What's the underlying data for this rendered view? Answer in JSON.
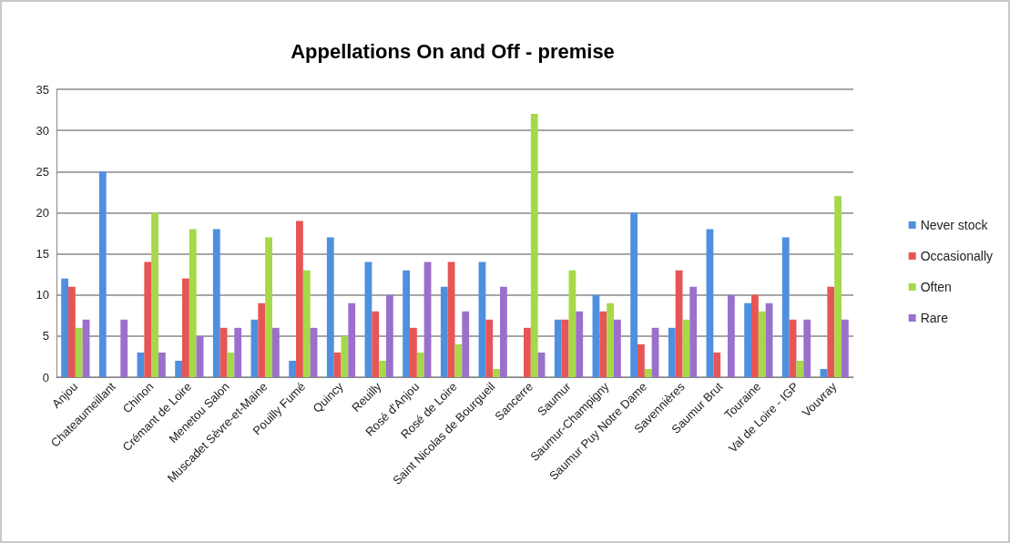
{
  "chart_data": {
    "type": "bar",
    "title": "Appellations On and Off - premise",
    "categories": [
      "Anjou",
      "Chateaumeillant",
      "Chinon",
      "Crémant de Loire",
      "Menetou Salon",
      "Muscadet Sèvre-et-Maine",
      "Pouilly Fumé",
      "Quincy",
      "Reuilly",
      "Rosé d'Anjou",
      "Rosé de Loire",
      "Saint Nicolas de Bourgueil",
      "Sancerre",
      "Saumur",
      "Saumur-Champigny",
      "Saumur Puy Notre Dame",
      "Savennières",
      "Saumur Brut",
      "Touraine",
      "Val de Loire - IGP",
      "Vouvray"
    ],
    "series": [
      {
        "name": "Never stock",
        "color": "#4f8fe0",
        "values": [
          12,
          25,
          3,
          2,
          18,
          7,
          2,
          17,
          14,
          13,
          11,
          14,
          0,
          7,
          10,
          20,
          6,
          18,
          9,
          17,
          1
        ]
      },
      {
        "name": "Occasionally",
        "color": "#e85555",
        "values": [
          11,
          0,
          14,
          12,
          6,
          9,
          19,
          3,
          8,
          6,
          14,
          7,
          6,
          7,
          8,
          4,
          13,
          3,
          10,
          7,
          11
        ]
      },
      {
        "name": "Often",
        "color": "#a6d84a",
        "values": [
          6,
          0,
          20,
          18,
          3,
          17,
          13,
          5,
          2,
          3,
          4,
          1,
          32,
          13,
          9,
          1,
          7,
          0,
          8,
          2,
          22
        ]
      },
      {
        "name": "Rare",
        "color": "#9a70cc",
        "values": [
          7,
          7,
          3,
          5,
          6,
          6,
          6,
          9,
          10,
          14,
          8,
          11,
          3,
          8,
          7,
          6,
          11,
          10,
          9,
          7,
          7
        ]
      }
    ],
    "ylim": [
      0,
      35
    ],
    "yticks": [
      0,
      5,
      10,
      15,
      20,
      25,
      30,
      35
    ],
    "grid": "y",
    "legend": "right"
  }
}
